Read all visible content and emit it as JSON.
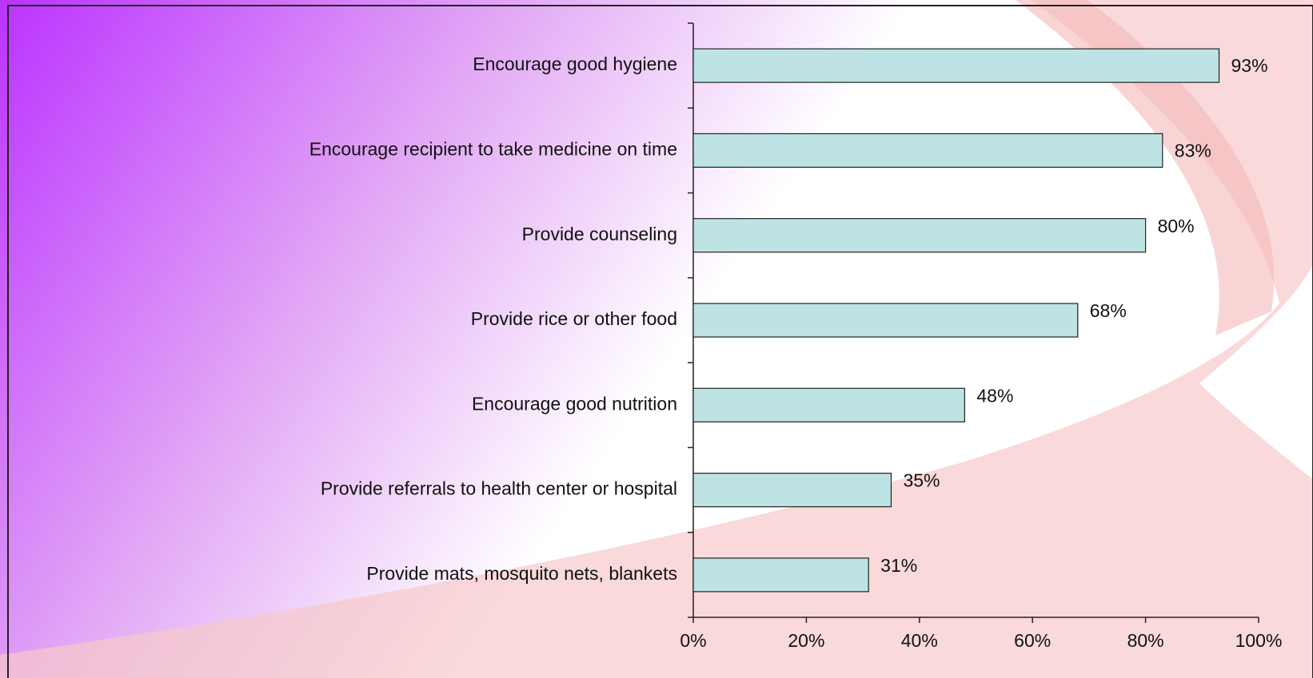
{
  "chart_data": {
    "type": "bar",
    "orientation": "horizontal",
    "categories": [
      "Encourage good hygiene",
      "Encourage recipient to take medicine on time",
      "Provide counseling",
      "Provide rice or other food",
      "Encourage good nutrition",
      "Provide referrals to health center or hospital",
      "Provide mats, mosquito nets, blankets"
    ],
    "values": [
      93,
      83,
      80,
      68,
      48,
      35,
      31
    ],
    "value_labels": [
      "93%",
      "83%",
      "80%",
      "68%",
      "48%",
      "35%",
      "31%"
    ],
    "color": "#bde3e4",
    "xlim": [
      0,
      100
    ],
    "xticks": [
      {
        "value": 0,
        "label": "0%"
      },
      {
        "value": 20,
        "label": "20%"
      },
      {
        "value": 40,
        "label": "40%"
      },
      {
        "value": 60,
        "label": "60%"
      },
      {
        "value": 80,
        "label": "80%"
      },
      {
        "value": 100,
        "label": "100%"
      }
    ],
    "grid": false
  }
}
